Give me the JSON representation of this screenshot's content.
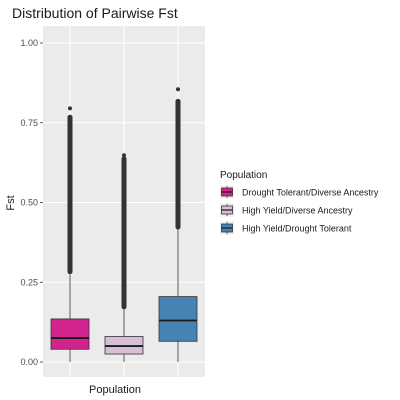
{
  "chart_data": {
    "type": "boxplot",
    "title": "Distribution of Pairwise Fst",
    "xlabel": "Population",
    "ylabel": "Fst",
    "ylim": [
      0,
      1.0
    ],
    "yticks": [
      "0.00",
      "0.25",
      "0.50",
      "0.75",
      "1.00"
    ],
    "yticks_values": [
      0,
      0.25,
      0.5,
      0.75,
      1.0
    ],
    "grid": true,
    "legend": {
      "title": "Population",
      "placement": "right"
    },
    "series": [
      {
        "name": "Drought Tolerant/Diverse Ancestry",
        "color": "#d3238f",
        "whisker_low": 0.0,
        "q1": 0.04,
        "median": 0.075,
        "q3": 0.135,
        "whisker_high": 0.275,
        "outliers_from": 0.275,
        "outliers_to": 0.775,
        "max_point": 0.795
      },
      {
        "name": "High Yield/Diverse Ancestry",
        "color": "#d8bfd8",
        "whisker_low": 0.0,
        "q1": 0.025,
        "median": 0.05,
        "q3": 0.08,
        "whisker_high": 0.165,
        "outliers_from": 0.165,
        "outliers_to": 0.645,
        "max_point": 0.648
      },
      {
        "name": "High Yield/Drought Tolerant",
        "color": "#4682b4",
        "whisker_low": 0.0,
        "q1": 0.065,
        "median": 0.13,
        "q3": 0.205,
        "whisker_high": 0.415,
        "outliers_from": 0.415,
        "outliers_to": 0.825,
        "max_point": 0.855
      }
    ]
  }
}
